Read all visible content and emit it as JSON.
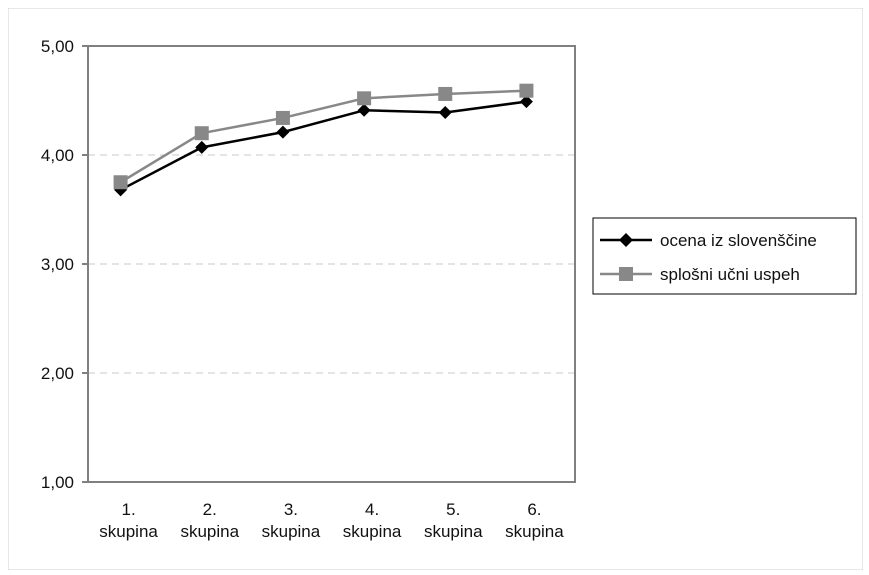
{
  "chart_data": {
    "type": "line",
    "title": "",
    "xlabel": "",
    "ylabel": "",
    "categories": [
      "1. skupina",
      "2. skupina",
      "3. skupina",
      "4. skupina",
      "5. skupina",
      "6. skupina"
    ],
    "category_lines": [
      [
        "1.",
        "skupina"
      ],
      [
        "2.",
        "skupina"
      ],
      [
        "3.",
        "skupina"
      ],
      [
        "4.",
        "skupina"
      ],
      [
        "5.",
        "skupina"
      ],
      [
        "6.",
        "skupina"
      ]
    ],
    "ylim": [
      1,
      5
    ],
    "yticks": [
      1,
      2,
      3,
      4,
      5
    ],
    "ytick_labels": [
      "1,00",
      "2,00",
      "3,00",
      "4,00",
      "5,00"
    ],
    "grid": true,
    "legend_position": "right",
    "series": [
      {
        "name": "ocena iz slovenščine",
        "values": [
          3.68,
          4.07,
          4.21,
          4.41,
          4.39,
          4.49
        ],
        "color": "#000000",
        "marker": "diamond"
      },
      {
        "name": "splošni učni uspeh",
        "values": [
          3.75,
          4.2,
          4.34,
          4.52,
          4.56,
          4.59
        ],
        "color": "#888888",
        "marker": "square"
      }
    ]
  }
}
